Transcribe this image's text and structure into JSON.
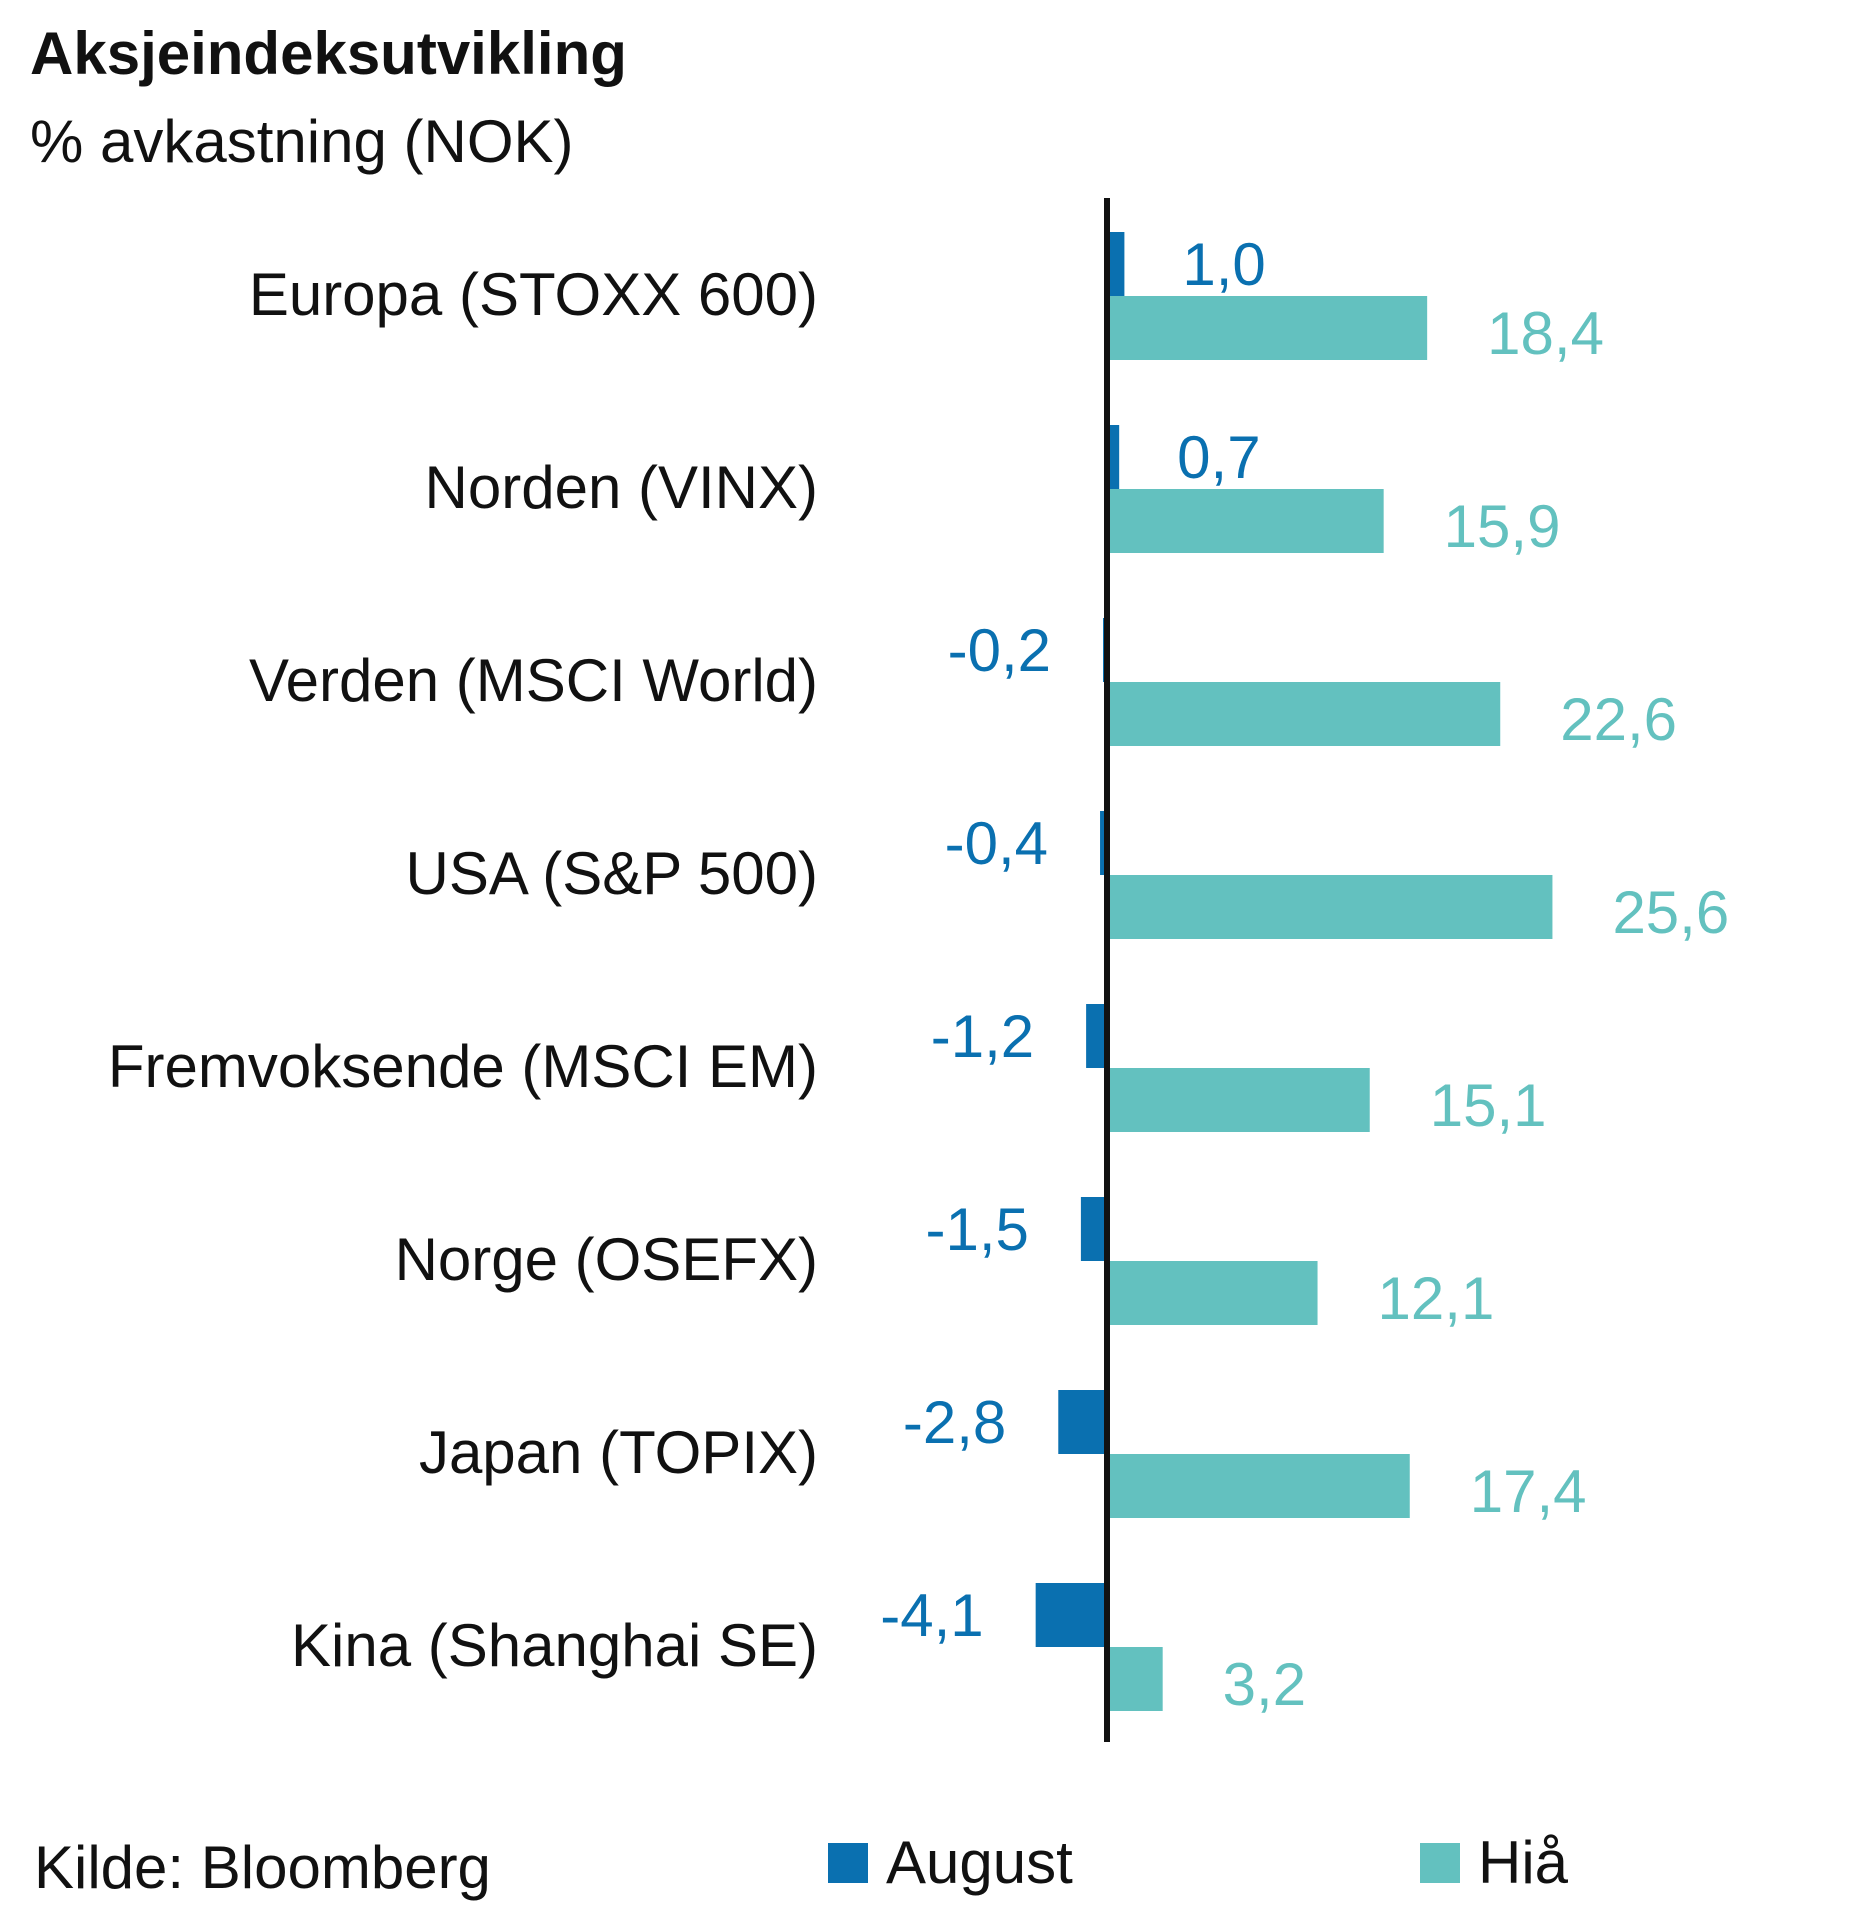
{
  "chart_data": {
    "type": "bar",
    "orientation": "horizontal",
    "title": "Aksjeindeksutvikling",
    "subtitle": "% avkastning (NOK)",
    "categories": [
      "Europa (STOXX 600)",
      "Norden (VINX)",
      "Verden (MSCI World)",
      "USA (S&P 500)",
      "Fremvoksende (MSCI EM)",
      "Norge (OSEFX)",
      "Japan (TOPIX)",
      "Kina (Shanghai SE)"
    ],
    "series": [
      {
        "name": "August",
        "color": "#0a70b0",
        "values": [
          1.0,
          0.7,
          -0.2,
          -0.4,
          -1.2,
          -1.5,
          -2.8,
          -4.1
        ],
        "labels": [
          "1,0",
          "0,7",
          "-0,2",
          "-0,4",
          "-1,2",
          "-1,5",
          "-2,8",
          "-4,1"
        ]
      },
      {
        "name": "Hiå",
        "color": "#63c1bf",
        "values": [
          18.4,
          15.9,
          22.6,
          25.6,
          15.1,
          12.1,
          17.4,
          3.2
        ],
        "labels": [
          "18,4",
          "15,9",
          "22,6",
          "25,6",
          "15,1",
          "12,1",
          "17,4",
          "3,2"
        ]
      }
    ],
    "xlim": [
      -4.1,
      25.6
    ],
    "grid": false,
    "legend_position": "bottom"
  },
  "source": "Kilde: Bloomberg"
}
